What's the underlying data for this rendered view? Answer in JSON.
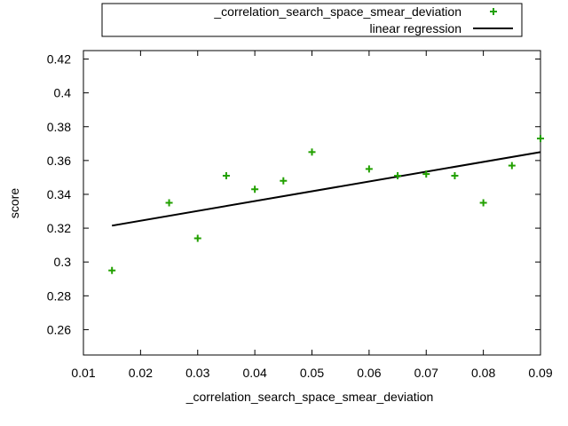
{
  "chart_data": {
    "type": "scatter",
    "xlabel": "_correlation_search_space_smear_deviation",
    "ylabel": "score",
    "xlim": [
      0.01,
      0.09
    ],
    "ylim": [
      0.245,
      0.425
    ],
    "x_ticks": [
      "0.01",
      "0.02",
      "0.03",
      "0.04",
      "0.05",
      "0.06",
      "0.07",
      "0.08",
      "0.09"
    ],
    "y_ticks": [
      "0.26",
      "0.28",
      "0.3",
      "0.32",
      "0.34",
      "0.36",
      "0.38",
      "0.4",
      "0.42"
    ],
    "legend_placement": "top (outside plot)",
    "series": [
      {
        "name": "_correlation_search_space_smear_deviation",
        "kind": "points",
        "marker": "plus",
        "color": "#22a000",
        "x": [
          0.015,
          0.025,
          0.03,
          0.035,
          0.04,
          0.045,
          0.05,
          0.06,
          0.065,
          0.07,
          0.075,
          0.08,
          0.085,
          0.09
        ],
        "y": [
          0.295,
          0.335,
          0.314,
          0.351,
          0.343,
          0.348,
          0.365,
          0.355,
          0.351,
          0.352,
          0.351,
          0.335,
          0.357,
          0.373
        ]
      },
      {
        "name": "linear regression",
        "kind": "line",
        "color": "#000000",
        "x": [
          0.015,
          0.09
        ],
        "y": [
          0.3215,
          0.365
        ]
      }
    ]
  }
}
